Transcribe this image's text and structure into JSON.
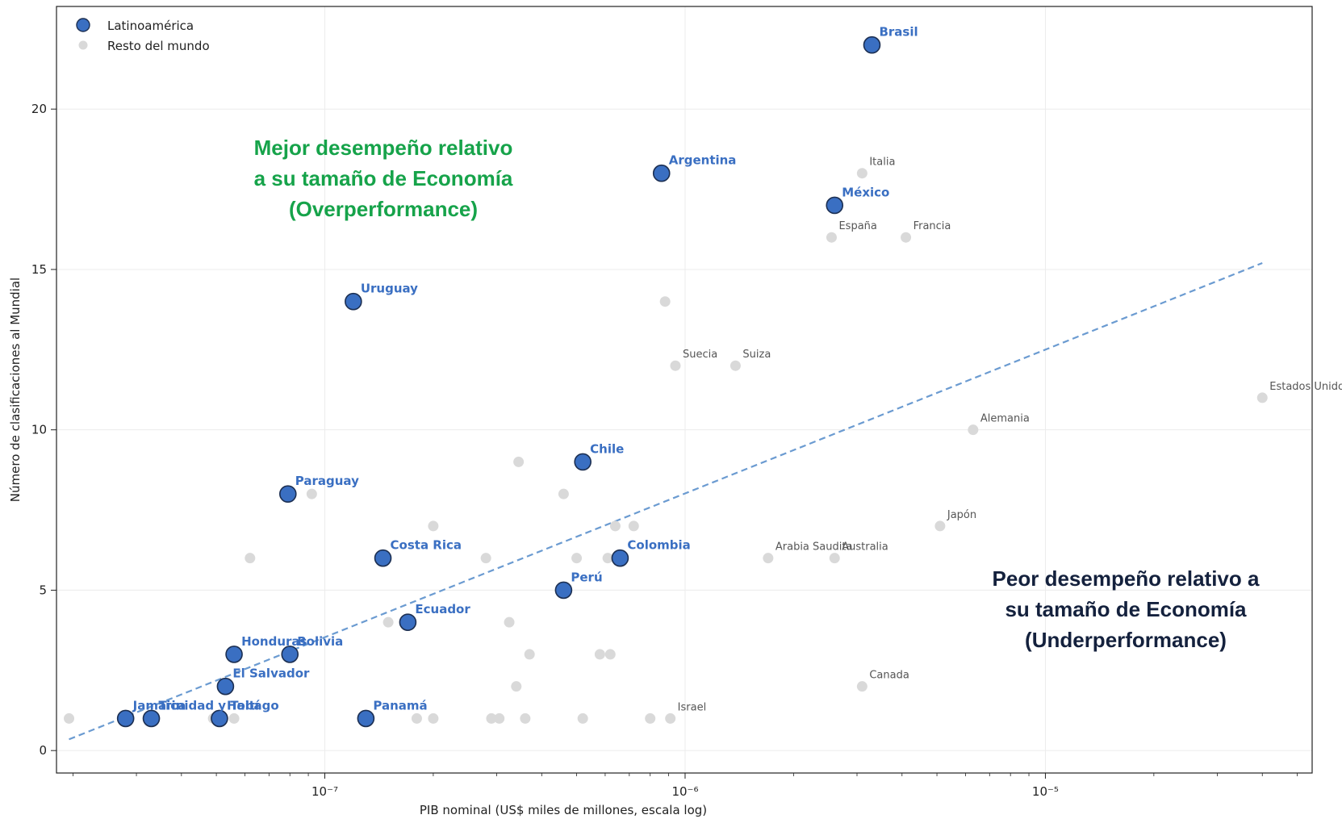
{
  "chart_data": {
    "type": "scatter",
    "xlabel": "PIB nominal (US$ miles de millones, escala log)",
    "ylabel": "Número de clasificaciones al Mundial",
    "xscale": "log",
    "xlim": [
      1.8e-08,
      5.5e-05
    ],
    "ylim": [
      -0.7,
      23.2
    ],
    "grid": true,
    "legend_position": "top-left",
    "x_ticks": [
      {
        "value": 1e-07,
        "label": "10⁻⁷"
      },
      {
        "value": 1e-06,
        "label": "10⁻⁶"
      },
      {
        "value": 1e-05,
        "label": "10⁻⁵"
      }
    ],
    "y_ticks": [
      {
        "value": 0,
        "label": "0"
      },
      {
        "value": 5,
        "label": "5"
      },
      {
        "value": 10,
        "label": "10"
      },
      {
        "value": 15,
        "label": "15"
      },
      {
        "value": 20,
        "label": "20"
      }
    ],
    "colors": {
      "latam_fill": "#3a6fc2",
      "latam_edge": "#1c2f52",
      "world": "#d9d9d9",
      "trend": "#6b9bd1",
      "overperformance": "#16a34a",
      "underperformance": "#14213d"
    },
    "series": [
      {
        "name": "Latinoamérica",
        "points": [
          {
            "label": "Brasil",
            "x": 3.3e-06,
            "y": 22
          },
          {
            "label": "Argentina",
            "x": 8.6e-07,
            "y": 18
          },
          {
            "label": "México",
            "x": 2.6e-06,
            "y": 17
          },
          {
            "label": "Uruguay",
            "x": 1.2e-07,
            "y": 14
          },
          {
            "label": "Chile",
            "x": 5.2e-07,
            "y": 9
          },
          {
            "label": "Paraguay",
            "x": 7.9e-08,
            "y": 8
          },
          {
            "label": "Costa Rica",
            "x": 1.45e-07,
            "y": 6
          },
          {
            "label": "Colombia",
            "x": 6.6e-07,
            "y": 6
          },
          {
            "label": "Perú",
            "x": 4.6e-07,
            "y": 5
          },
          {
            "label": "Ecuador",
            "x": 1.7e-07,
            "y": 4
          },
          {
            "label": "Honduras",
            "x": 5.6e-08,
            "y": 3
          },
          {
            "label": "Bolivia",
            "x": 8e-08,
            "y": 3
          },
          {
            "label": "El Salvador",
            "x": 5.3e-08,
            "y": 2
          },
          {
            "label": "Jamaica",
            "x": 2.8e-08,
            "y": 1
          },
          {
            "label": "Trinidad y Tobago",
            "x": 3.3e-08,
            "y": 1
          },
          {
            "label": "Haití",
            "x": 5.1e-08,
            "y": 1
          },
          {
            "label": "Panamá",
            "x": 1.3e-07,
            "y": 1
          }
        ]
      },
      {
        "name": "Resto del mundo",
        "points": [
          {
            "label": "Italia",
            "x": 3.1e-06,
            "y": 18
          },
          {
            "label": "España",
            "x": 2.55e-06,
            "y": 16
          },
          {
            "label": "Francia",
            "x": 4.1e-06,
            "y": 16
          },
          {
            "label": "Suecia",
            "x": 9.4e-07,
            "y": 12
          },
          {
            "label": "Suiza",
            "x": 1.38e-06,
            "y": 12
          },
          {
            "label": "Estados Unidos",
            "x": 4e-05,
            "y": 11
          },
          {
            "label": "Alemania",
            "x": 6.3e-06,
            "y": 10
          },
          {
            "label": "Japón",
            "x": 5.1e-06,
            "y": 7
          },
          {
            "label": "Arabia Saudita",
            "x": 1.7e-06,
            "y": 6
          },
          {
            "label": "Australia",
            "x": 2.6e-06,
            "y": 6
          },
          {
            "label": "Canada",
            "x": 3.1e-06,
            "y": 2
          },
          {
            "label": "Israel",
            "x": 9.1e-07,
            "y": 1
          },
          {
            "label": "",
            "x": 8.8e-07,
            "y": 14
          },
          {
            "label": "",
            "x": 3.45e-07,
            "y": 9
          },
          {
            "label": "",
            "x": 4.6e-07,
            "y": 8
          },
          {
            "label": "",
            "x": 9.2e-08,
            "y": 8
          },
          {
            "label": "",
            "x": 2e-07,
            "y": 7
          },
          {
            "label": "",
            "x": 6.4e-07,
            "y": 7
          },
          {
            "label": "",
            "x": 7.2e-07,
            "y": 7
          },
          {
            "label": "",
            "x": 6.2e-08,
            "y": 6
          },
          {
            "label": "",
            "x": 2.8e-07,
            "y": 6
          },
          {
            "label": "",
            "x": 5e-07,
            "y": 6
          },
          {
            "label": "",
            "x": 6.1e-07,
            "y": 6
          },
          {
            "label": "",
            "x": 1.5e-07,
            "y": 4
          },
          {
            "label": "",
            "x": 3.25e-07,
            "y": 4
          },
          {
            "label": "",
            "x": 5.5e-08,
            "y": 3
          },
          {
            "label": "",
            "x": 3.7e-07,
            "y": 3
          },
          {
            "label": "",
            "x": 5.8e-07,
            "y": 3
          },
          {
            "label": "",
            "x": 6.2e-07,
            "y": 3
          },
          {
            "label": "",
            "x": 3.4e-07,
            "y": 2
          },
          {
            "label": "",
            "x": 1.95e-08,
            "y": 1
          },
          {
            "label": "",
            "x": 4.9e-08,
            "y": 1
          },
          {
            "label": "",
            "x": 5.6e-08,
            "y": 1
          },
          {
            "label": "",
            "x": 1.8e-07,
            "y": 1
          },
          {
            "label": "",
            "x": 2e-07,
            "y": 1
          },
          {
            "label": "",
            "x": 2.9e-07,
            "y": 1
          },
          {
            "label": "",
            "x": 3.05e-07,
            "y": 1
          },
          {
            "label": "",
            "x": 3.6e-07,
            "y": 1
          },
          {
            "label": "",
            "x": 5.2e-07,
            "y": 1
          },
          {
            "label": "",
            "x": 8e-07,
            "y": 1
          }
        ]
      }
    ],
    "trendline": {
      "x": [
        1.95e-08,
        4e-05
      ],
      "y": [
        0.35,
        15.2
      ]
    },
    "annotations": {
      "overperformance": "Mejor desempeño relativo\na su tamaño de Economía\n(Overperformance)",
      "underperformance": "Peor desempeño relativo a\nsu tamaño de Economía\n(Underperformance)"
    }
  }
}
